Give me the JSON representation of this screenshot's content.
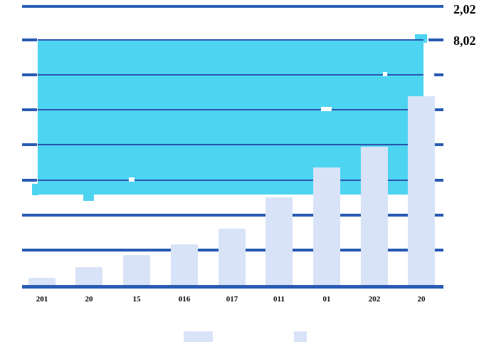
{
  "chart_data": {
    "type": "bar",
    "title": "",
    "xlabel": "",
    "ylabel": "",
    "categories": [
      "201",
      "20",
      "15",
      "016",
      "017",
      "011",
      "01",
      "202",
      "20"
    ],
    "series": [
      {
        "name": "light-lavender-bars",
        "color": "#d8e3f8",
        "values": [
          0.2,
          0.5,
          0.85,
          1.15,
          1.6,
          2.5,
          3.35,
          3.95,
          5.4
        ]
      }
    ],
    "band": {
      "name": "cyan-band",
      "color": "#4dd4f1",
      "from_unit": 2.58,
      "to_unit": 6.98,
      "note": "solid cyan block spanning nearly the full plot width, behind the bars"
    },
    "right_labels": [
      {
        "text": "2,02",
        "y_unit": 8
      },
      {
        "text": "8,02",
        "y_unit": 7
      }
    ],
    "ylim": [
      0,
      8
    ],
    "grid": true,
    "gridline_units": [
      1,
      2,
      3,
      4,
      5,
      6,
      7
    ],
    "legend_position": "bottom"
  },
  "colors": {
    "background": "#ffffff",
    "bar_fill": "#d8e3f8",
    "band_fill": "#4dd4f1",
    "grid_line": "#2a5cb4",
    "grid_line_over_band": "#2b55ae",
    "label_text": "#0a0a0a"
  },
  "legend": {
    "items": [
      {
        "name": "legend-swatch-wide",
        "swatch_color": "#d8e3f8"
      },
      {
        "name": "legend-swatch-narrow",
        "swatch_color": "#d8e3f8"
      }
    ]
  }
}
